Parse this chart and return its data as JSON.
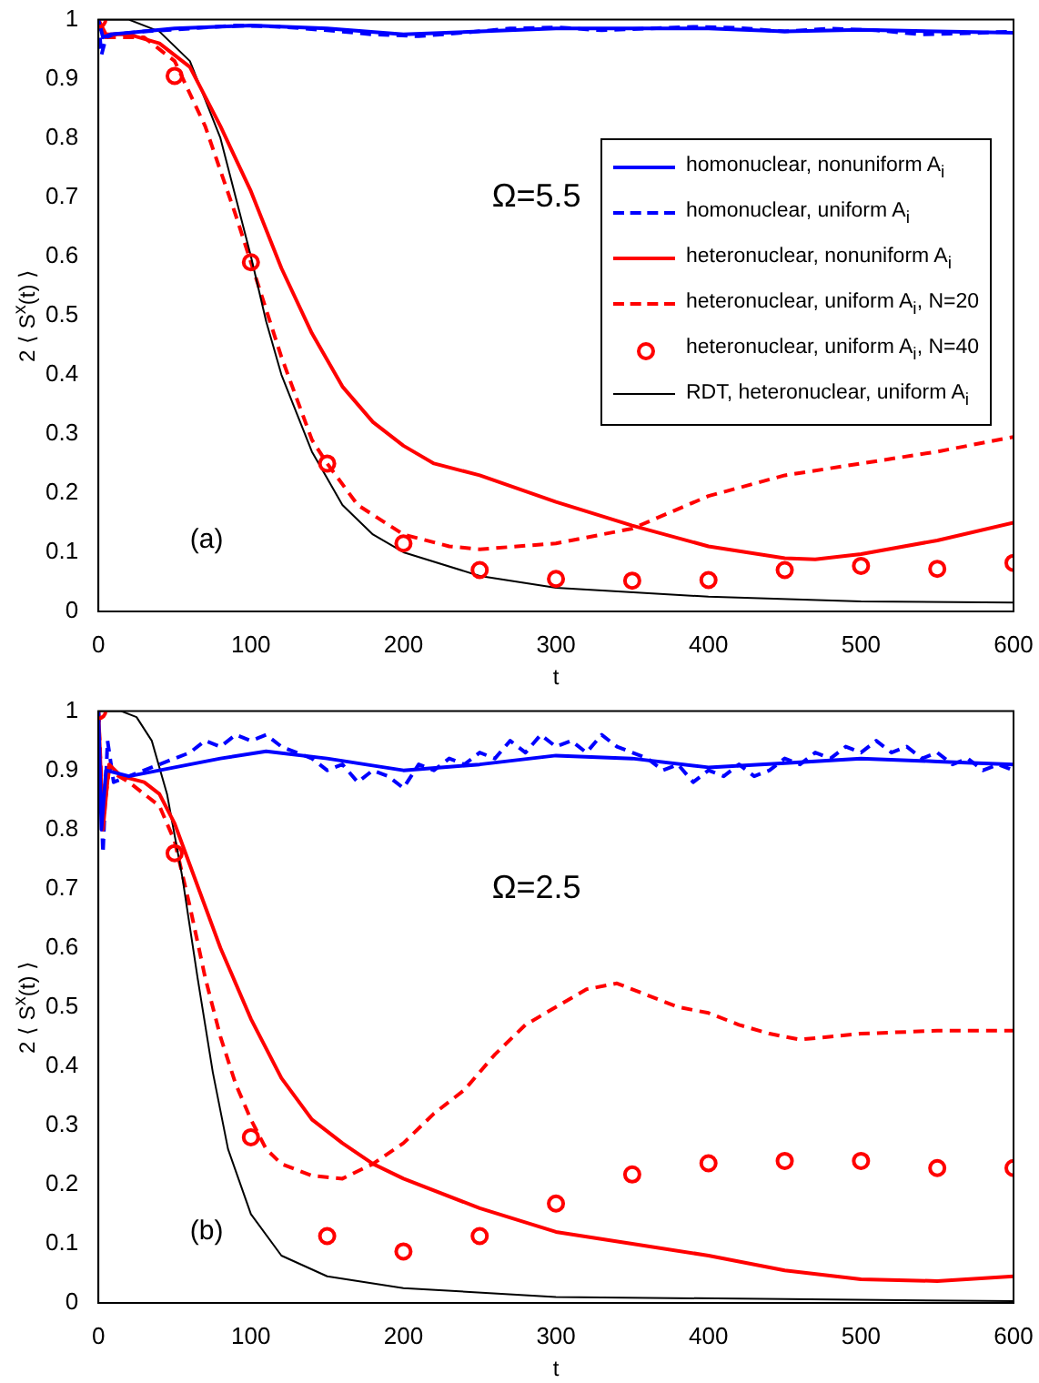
{
  "chart_data": [
    {
      "type": "line",
      "xlabel": "t",
      "ylabel": "2 ⟨ S$^{x}$(t) ⟩",
      "annotations": [
        "Ω=5.5",
        "(a)"
      ],
      "xlim": [
        0,
        600
      ],
      "xticks": [
        0,
        100,
        200,
        300,
        400,
        500,
        600
      ],
      "ylim": [
        0,
        1
      ],
      "yticks": [
        0,
        0.1,
        0.2,
        0.3,
        0.4,
        0.5,
        0.6,
        0.7,
        0.8,
        0.9,
        1
      ],
      "grid": false,
      "legend": "top right",
      "series": [
        {
          "name": "homonuclear, nonuniform A$_{i}$",
          "color": "#0000ff",
          "x": [
            0,
            3,
            8,
            20,
            50,
            100,
            150,
            200,
            250,
            300,
            350,
            400,
            450,
            500,
            550,
            600
          ],
          "values": [
            1,
            0.97,
            0.975,
            0.978,
            0.985,
            0.99,
            0.985,
            0.975,
            0.98,
            0.985,
            0.985,
            0.985,
            0.98,
            0.983,
            0.98,
            0.978
          ]
        },
        {
          "name": "homonuclear, uniform A$_{i}$",
          "color": "#0000ff",
          "line_style": "dashed",
          "x": [
            0,
            2,
            5,
            10,
            30,
            60,
            90,
            120,
            150,
            180,
            210,
            240,
            270,
            300,
            330,
            360,
            390,
            420,
            450,
            480,
            510,
            540,
            570,
            600
          ],
          "values": [
            1,
            0.94,
            0.97,
            0.975,
            0.98,
            0.985,
            0.99,
            0.988,
            0.982,
            0.975,
            0.972,
            0.978,
            0.985,
            0.987,
            0.982,
            0.985,
            0.988,
            0.986,
            0.98,
            0.985,
            0.982,
            0.975,
            0.977,
            0.98
          ]
        },
        {
          "name": "heteronuclear, nonuniform A$_{i}$",
          "color": "#ff0000",
          "x": [
            0,
            5,
            20,
            40,
            60,
            80,
            100,
            120,
            140,
            160,
            180,
            200,
            220,
            250,
            300,
            350,
            400,
            450,
            470,
            500,
            550,
            600
          ],
          "values": [
            1,
            0.975,
            0.975,
            0.96,
            0.92,
            0.82,
            0.71,
            0.58,
            0.47,
            0.38,
            0.32,
            0.28,
            0.25,
            0.23,
            0.185,
            0.145,
            0.11,
            0.09,
            0.088,
            0.097,
            0.12,
            0.15
          ]
        },
        {
          "name": "heteronuclear, uniform A$_{i}$, N=20",
          "color": "#ff0000",
          "line_style": "dashed",
          "x": [
            0,
            5,
            30,
            50,
            70,
            90,
            100,
            120,
            140,
            150,
            170,
            200,
            230,
            250,
            300,
            350,
            400,
            450,
            500,
            550,
            600
          ],
          "values": [
            1,
            0.97,
            0.97,
            0.93,
            0.82,
            0.67,
            0.59,
            0.43,
            0.29,
            0.25,
            0.18,
            0.13,
            0.11,
            0.105,
            0.115,
            0.14,
            0.195,
            0.23,
            0.25,
            0.27,
            0.295
          ]
        },
        {
          "name": "heteronuclear, uniform A$_{i}$, N=40",
          "type": "scatter",
          "marker": "circle",
          "color": "#ff0000",
          "x": [
            0,
            50,
            100,
            150,
            200,
            250,
            300,
            350,
            400,
            450,
            500,
            550,
            600
          ],
          "values": [
            1,
            0.905,
            0.59,
            0.25,
            0.115,
            0.07,
            0.055,
            0.052,
            0.053,
            0.07,
            0.077,
            0.072,
            0.082
          ]
        },
        {
          "name": "RDT, heteronuclear, uniform A$_{i}$",
          "color": "#000000",
          "x": [
            0,
            20,
            40,
            60,
            80,
            90,
            100,
            110,
            120,
            140,
            160,
            180,
            200,
            250,
            300,
            400,
            500,
            600
          ],
          "values": [
            1,
            1,
            0.98,
            0.93,
            0.8,
            0.7,
            0.6,
            0.49,
            0.4,
            0.27,
            0.18,
            0.13,
            0.1,
            0.06,
            0.04,
            0.025,
            0.017,
            0.015
          ]
        }
      ]
    },
    {
      "type": "line",
      "xlabel": "t",
      "ylabel": "2 ⟨ S$^{x}$(t) ⟩",
      "annotations": [
        "Ω=2.5",
        "(b)"
      ],
      "xlim": [
        0,
        600
      ],
      "xticks": [
        0,
        100,
        200,
        300,
        400,
        500,
        600
      ],
      "ylim": [
        0,
        1
      ],
      "yticks": [
        0,
        0.1,
        0.2,
        0.3,
        0.4,
        0.5,
        0.6,
        0.7,
        0.8,
        0.9,
        1
      ],
      "grid": false,
      "series": [
        {
          "color": "#0000ff",
          "x": [
            0,
            2,
            5,
            20,
            50,
            80,
            110,
            150,
            200,
            250,
            300,
            350,
            400,
            450,
            500,
            550,
            600
          ],
          "values": [
            1,
            0.8,
            0.9,
            0.89,
            0.905,
            0.92,
            0.932,
            0.92,
            0.9,
            0.91,
            0.925,
            0.92,
            0.905,
            0.912,
            0.92,
            0.915,
            0.91
          ]
        },
        {
          "color": "#0000ff",
          "line_style": "dashed",
          "x": [
            0,
            3,
            6,
            10,
            20,
            30,
            40,
            50,
            60,
            70,
            80,
            90,
            100,
            110,
            120,
            130,
            140,
            150,
            160,
            170,
            180,
            190,
            200,
            210,
            220,
            230,
            240,
            250,
            260,
            270,
            280,
            290,
            300,
            310,
            320,
            330,
            340,
            350,
            360,
            370,
            380,
            390,
            400,
            410,
            420,
            430,
            440,
            450,
            460,
            470,
            480,
            490,
            500,
            510,
            520,
            530,
            540,
            550,
            560,
            570,
            580,
            590,
            600
          ],
          "values": [
            1,
            0.76,
            0.95,
            0.88,
            0.89,
            0.9,
            0.91,
            0.92,
            0.93,
            0.95,
            0.94,
            0.96,
            0.95,
            0.96,
            0.94,
            0.93,
            0.92,
            0.9,
            0.91,
            0.88,
            0.9,
            0.89,
            0.87,
            0.91,
            0.9,
            0.92,
            0.91,
            0.93,
            0.92,
            0.95,
            0.93,
            0.96,
            0.94,
            0.95,
            0.93,
            0.96,
            0.94,
            0.93,
            0.92,
            0.9,
            0.91,
            0.88,
            0.9,
            0.89,
            0.91,
            0.89,
            0.9,
            0.92,
            0.91,
            0.93,
            0.92,
            0.94,
            0.93,
            0.95,
            0.93,
            0.94,
            0.92,
            0.93,
            0.91,
            0.92,
            0.9,
            0.91,
            0.9
          ]
        },
        {
          "color": "#ff0000",
          "x": [
            0,
            3,
            7,
            15,
            30,
            40,
            50,
            60,
            70,
            80,
            100,
            120,
            140,
            160,
            180,
            200,
            250,
            300,
            350,
            400,
            450,
            500,
            550,
            600
          ],
          "values": [
            1,
            0.8,
            0.91,
            0.89,
            0.88,
            0.86,
            0.81,
            0.74,
            0.67,
            0.6,
            0.48,
            0.38,
            0.31,
            0.27,
            0.235,
            0.21,
            0.16,
            0.12,
            0.1,
            0.08,
            0.055,
            0.04,
            0.037,
            0.045
          ]
        },
        {
          "color": "#ff0000",
          "line_style": "dashed",
          "x": [
            0,
            3,
            7,
            20,
            40,
            50,
            60,
            70,
            80,
            90,
            100,
            110,
            120,
            140,
            160,
            180,
            200,
            220,
            240,
            260,
            280,
            300,
            320,
            340,
            360,
            380,
            400,
            420,
            440,
            460,
            500,
            550,
            600
          ],
          "values": [
            1,
            0.82,
            0.9,
            0.88,
            0.84,
            0.78,
            0.67,
            0.55,
            0.45,
            0.37,
            0.31,
            0.26,
            0.235,
            0.215,
            0.21,
            0.235,
            0.27,
            0.32,
            0.36,
            0.42,
            0.47,
            0.5,
            0.53,
            0.54,
            0.52,
            0.5,
            0.49,
            0.47,
            0.455,
            0.445,
            0.455,
            0.46,
            0.46
          ]
        },
        {
          "type": "scatter",
          "marker": "circle",
          "color": "#ff0000",
          "x": [
            0,
            50,
            100,
            150,
            200,
            250,
            300,
            350,
            400,
            450,
            500,
            550,
            600
          ],
          "values": [
            1,
            0.76,
            0.28,
            0.113,
            0.087,
            0.113,
            0.168,
            0.217,
            0.236,
            0.24,
            0.24,
            0.228,
            0.228
          ]
        },
        {
          "color": "#000000",
          "x": [
            0,
            15,
            25,
            35,
            45,
            55,
            65,
            75,
            85,
            100,
            120,
            150,
            200,
            300,
            600
          ],
          "values": [
            1,
            1,
            0.99,
            0.95,
            0.86,
            0.72,
            0.55,
            0.39,
            0.26,
            0.15,
            0.08,
            0.045,
            0.025,
            0.01,
            0.003
          ]
        }
      ]
    }
  ]
}
